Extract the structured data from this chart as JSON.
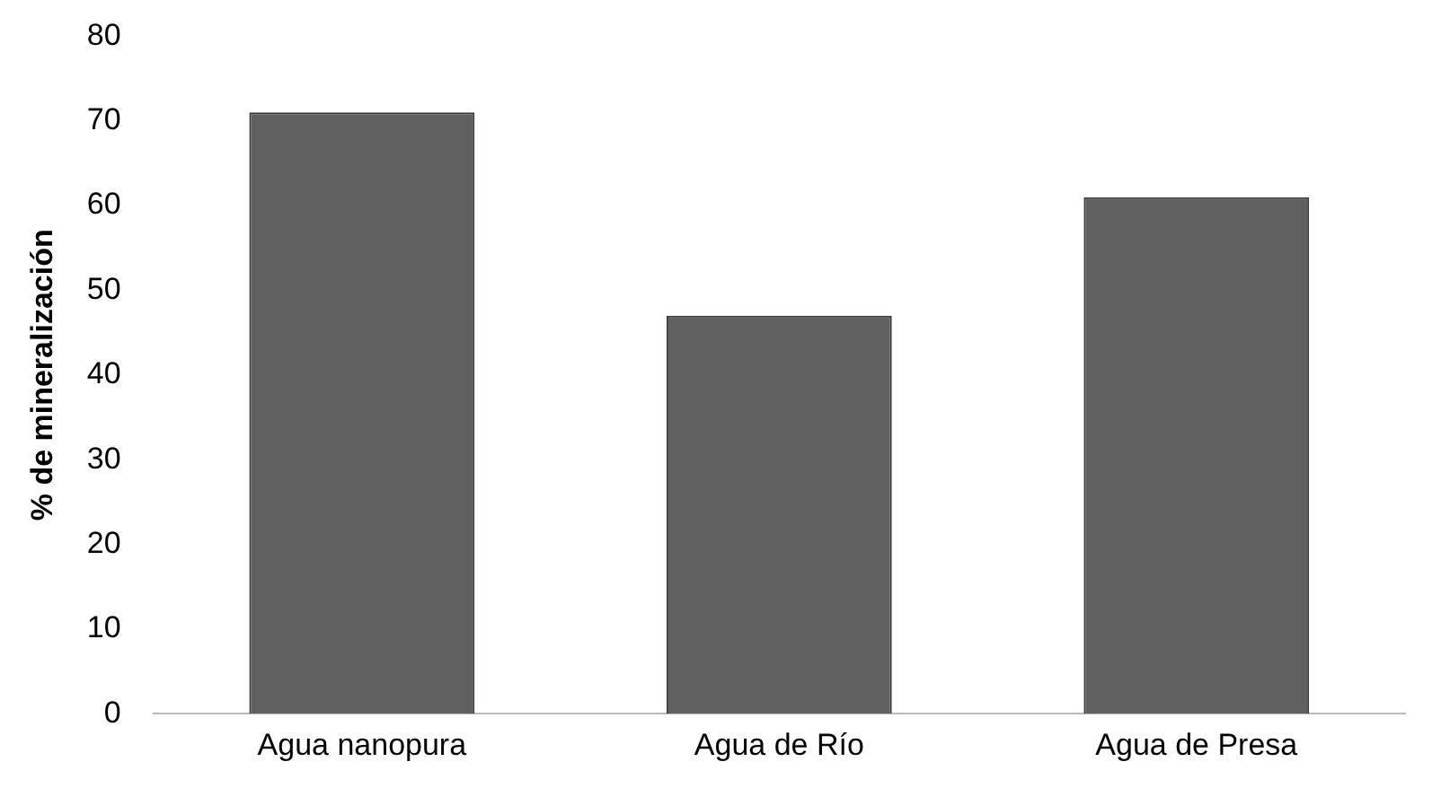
{
  "chart_data": {
    "type": "bar",
    "ylabel": "% de mineralización",
    "categories": [
      "Agua nanopura",
      "Agua de Río",
      "Agua de Presa"
    ],
    "values": [
      71,
      47,
      61
    ],
    "color": "#606060",
    "ylim": [
      0,
      80
    ],
    "yticks": [
      0,
      10,
      20,
      30,
      40,
      50,
      60,
      70,
      80
    ],
    "grid": false,
    "legend": false
  }
}
